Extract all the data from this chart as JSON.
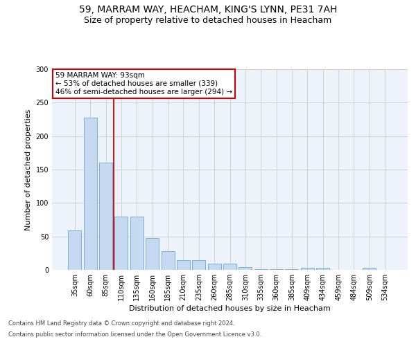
{
  "title": "59, MARRAM WAY, HEACHAM, KING'S LYNN, PE31 7AH",
  "subtitle": "Size of property relative to detached houses in Heacham",
  "xlabel": "Distribution of detached houses by size in Heacham",
  "ylabel": "Number of detached properties",
  "bar_color": "#c5d9f0",
  "bar_edgecolor": "#7bafd4",
  "categories": [
    "35sqm",
    "60sqm",
    "85sqm",
    "110sqm",
    "135sqm",
    "160sqm",
    "185sqm",
    "210sqm",
    "235sqm",
    "260sqm",
    "285sqm",
    "310sqm",
    "335sqm",
    "360sqm",
    "385sqm",
    "409sqm",
    "434sqm",
    "459sqm",
    "484sqm",
    "509sqm",
    "534sqm"
  ],
  "values": [
    59,
    228,
    160,
    80,
    80,
    48,
    28,
    15,
    15,
    9,
    9,
    4,
    1,
    1,
    1,
    3,
    3,
    0,
    0,
    3,
    0
  ],
  "vline_x_idx": 2,
  "vline_color": "#cc0000",
  "annotation_text": "59 MARRAM WAY: 93sqm\n← 53% of detached houses are smaller (339)\n46% of semi-detached houses are larger (294) →",
  "annotation_box_color": "#ffffff",
  "annotation_box_edgecolor": "#cc0000",
  "ylim": [
    0,
    300
  ],
  "yticks": [
    0,
    50,
    100,
    150,
    200,
    250,
    300
  ],
  "grid_color": "#cccccc",
  "background_color": "#eef2fb",
  "footer_line1": "Contains HM Land Registry data © Crown copyright and database right 2024.",
  "footer_line2": "Contains public sector information licensed under the Open Government Licence v3.0.",
  "title_fontsize": 10,
  "subtitle_fontsize": 9,
  "ylabel_fontsize": 8,
  "xlabel_fontsize": 8,
  "tick_fontsize": 7,
  "footer_fontsize": 6
}
